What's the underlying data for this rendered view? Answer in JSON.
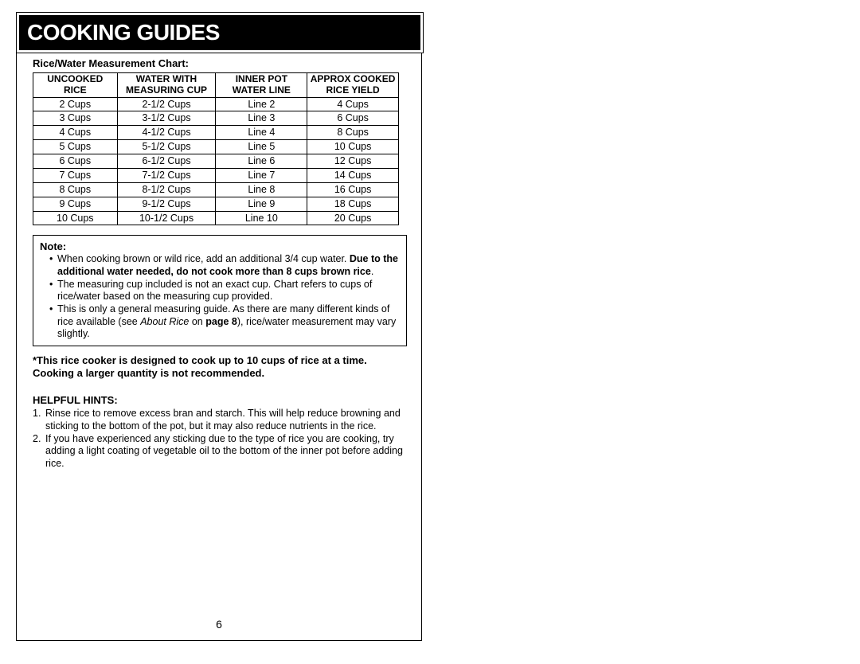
{
  "page": {
    "title": "COOKING GUIDES",
    "page_number": "6",
    "chart_title": "Rice/Water Measurement Chart:",
    "table": {
      "headers": {
        "col1_line1": "UNCOOKED",
        "col1_line2": "RICE",
        "col2_line1": "WATER WITH",
        "col2_line2": "MEASURING CUP",
        "col3_line1": "INNER POT",
        "col3_line2": "WATER LINE",
        "col4_line1": "APPROX COOKED",
        "col4_line2": "RICE YIELD"
      },
      "col_widths": [
        "23%",
        "27%",
        "25%",
        "30%"
      ],
      "rows": [
        {
          "c1": "2 Cups",
          "c2": "2-1/2 Cups",
          "c3": "Line 2",
          "c4": "4 Cups"
        },
        {
          "c1": "3 Cups",
          "c2": "3-1/2 Cups",
          "c3": "Line 3",
          "c4": "6 Cups"
        },
        {
          "c1": "4 Cups",
          "c2": "4-1/2 Cups",
          "c3": "Line 4",
          "c4": "8 Cups"
        },
        {
          "c1": "5 Cups",
          "c2": "5-1/2 Cups",
          "c3": "Line 5",
          "c4": "10 Cups"
        },
        {
          "c1": "6 Cups",
          "c2": "6-1/2 Cups",
          "c3": "Line 6",
          "c4": "12 Cups"
        },
        {
          "c1": "7 Cups",
          "c2": "7-1/2 Cups",
          "c3": "Line 7",
          "c4": "14 Cups"
        },
        {
          "c1": "8 Cups",
          "c2": "8-1/2 Cups",
          "c3": "Line 8",
          "c4": "16 Cups"
        },
        {
          "c1": "9 Cups",
          "c2": "9-1/2 Cups",
          "c3": "Line 9",
          "c4": "18 Cups"
        },
        {
          "c1": "10 Cups",
          "c2": "10-1/2 Cups",
          "c3": "Line 10",
          "c4": "20 Cups"
        }
      ]
    },
    "note": {
      "title": "Note:",
      "item1_pre": "When cooking brown or wild rice, add an additional 3/4 cup water. ",
      "item1_bold": "Due to the additional water needed, do not cook more than 8 cups brown rice",
      "item1_post": ".",
      "item2": "The measuring cup included is not an exact cup.  Chart refers to cups of rice/water based on the measuring cup provided.",
      "item3_pre": "This is only a general measuring guide.  As there are many different kinds of rice available (see ",
      "item3_italic": "About Rice",
      "item3_mid": " on ",
      "item3_bold": "page 8",
      "item3_post": "), rice/water measurement may vary slightly."
    },
    "warning": "*This rice cooker is designed to cook up to 10 cups of rice at a time. Cooking a larger quantity is not recommended.",
    "hints": {
      "title": "HELPFUL HINTS:",
      "items": [
        "Rinse rice to remove excess bran and starch.  This will help reduce browning and sticking to the bottom of the pot, but it may also reduce nutrients in the rice.",
        "If you have experienced any sticking due to the type of rice you are cooking, try adding a light coating of vegetable oil to the bottom of the inner pot before adding rice."
      ]
    }
  },
  "colors": {
    "text": "#000000",
    "background": "#ffffff",
    "title_bg": "#000000",
    "title_fg": "#ffffff"
  }
}
